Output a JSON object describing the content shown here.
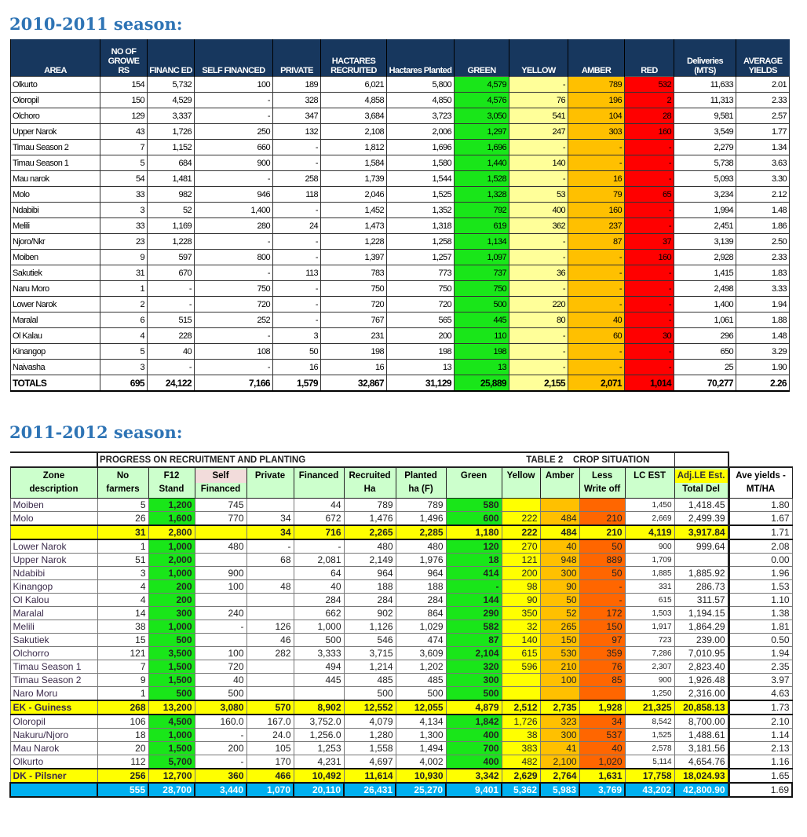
{
  "season1": {
    "title": "2010-2011 season:",
    "headers": [
      "AREA",
      "NO OF GROWE RS",
      "FINANC ED",
      "SELF FINANCED",
      "PRIVATE",
      "HACTARES RECRUITED",
      "Hactares Planted",
      "GREEN",
      "YELLOW",
      "AMBER",
      "RED",
      "Deliveries (MTS)",
      "AVERAGE YIELDS"
    ],
    "rows": [
      [
        "Olkurto",
        "154",
        "5,732",
        "100",
        "189",
        "6,021",
        "5,800",
        "4,579",
        "-",
        "789",
        "532",
        "11,633",
        "2.01"
      ],
      [
        "Oloropil",
        "150",
        "4,529",
        "-",
        "328",
        "4,858",
        "4,850",
        "4,576",
        "76",
        "196",
        "2",
        "11,313",
        "2.33"
      ],
      [
        "Olchoro",
        "129",
        "3,337",
        "-",
        "347",
        "3,684",
        "3,723",
        "3,050",
        "541",
        "104",
        "28",
        "9,581",
        "2.57"
      ],
      [
        "Upper Narok",
        "43",
        "1,726",
        "250",
        "132",
        "2,108",
        "2,006",
        "1,297",
        "247",
        "303",
        "160",
        "3,549",
        "1.77"
      ],
      [
        "Timau Season 2",
        "7",
        "1,152",
        "660",
        "-",
        "1,812",
        "1,696",
        "1,696",
        "-",
        "-",
        "-",
        "2,279",
        "1.34"
      ],
      [
        "Timau Season 1",
        "5",
        "684",
        "900",
        "-",
        "1,584",
        "1,580",
        "1,440",
        "140",
        "-",
        "-",
        "5,738",
        "3.63"
      ],
      [
        "Mau narok",
        "54",
        "1,481",
        "-",
        "258",
        "1,739",
        "1,544",
        "1,528",
        "-",
        "16",
        "-",
        "5,093",
        "3.30"
      ],
      [
        "Molo",
        "33",
        "982",
        "946",
        "118",
        "2,046",
        "1,525",
        "1,328",
        "53",
        "79",
        "65",
        "3,234",
        "2.12"
      ],
      [
        "Ndabibi",
        "3",
        "52",
        "1,400",
        "-",
        "1,452",
        "1,352",
        "792",
        "400",
        "160",
        "-",
        "1,994",
        "1.48"
      ],
      [
        "Melili",
        "33",
        "1,169",
        "280",
        "24",
        "1,473",
        "1,318",
        "619",
        "362",
        "237",
        "-",
        "2,451",
        "1.86"
      ],
      [
        "Njoro/Nkr",
        "23",
        "1,228",
        "-",
        "-",
        "1,228",
        "1,258",
        "1,134",
        "-",
        "87",
        "37",
        "3,139",
        "2.50"
      ],
      [
        "Moiben",
        "9",
        "597",
        "800",
        "-",
        "1,397",
        "1,257",
        "1,097",
        "-",
        "-",
        "160",
        "2,928",
        "2.33"
      ],
      [
        "Sakutiek",
        "31",
        "670",
        "-",
        "113",
        "783",
        "773",
        "737",
        "36",
        "-",
        "-",
        "1,415",
        "1.83"
      ],
      [
        "Naru Moro",
        "1",
        "-",
        "750",
        "-",
        "750",
        "750",
        "750",
        "-",
        "-",
        "-",
        "2,498",
        "3.33"
      ],
      [
        "Lower Narok",
        "2",
        "-",
        "720",
        "-",
        "720",
        "720",
        "500",
        "220",
        "-",
        "-",
        "1,400",
        "1.94"
      ],
      [
        "Maralal",
        "6",
        "515",
        "252",
        "-",
        "767",
        "565",
        "445",
        "80",
        "40",
        "-",
        "1,061",
        "1.88"
      ],
      [
        "Ol Kalau",
        "4",
        "228",
        "-",
        "3",
        "231",
        "200",
        "110",
        "-",
        "60",
        "30",
        "296",
        "1.48"
      ],
      [
        "Kinangop",
        "5",
        "40",
        "108",
        "50",
        "198",
        "198",
        "198",
        "-",
        "-",
        "-",
        "650",
        "3.29"
      ],
      [
        "Naivasha",
        "3",
        "-",
        "-",
        "16",
        "16",
        "13",
        "13",
        "-",
        "-",
        "-",
        "25",
        "1.90"
      ]
    ],
    "totals": [
      "TOTALS",
      "695",
      "24,122",
      "7,166",
      "1,579",
      "32,867",
      "31,129",
      "25,889",
      "2,155",
      "2,071",
      "1,014",
      "70,277",
      "2.26"
    ]
  },
  "season2": {
    "title": "2011-2012 season:",
    "group_progress": "PROGRESS ON RECRUITMENT AND PLANTING",
    "group_crop": "TABLE 2    CROP SITUATION",
    "headers": [
      {
        "l1": "Zone",
        "l2": "description"
      },
      {
        "l1": "No",
        "l2": "farmers"
      },
      {
        "l1": "F12",
        "l2": "Stand"
      },
      {
        "l1": "Self",
        "l2": "Financed"
      },
      {
        "l1": "Private",
        "l2": ""
      },
      {
        "l1": "Financed",
        "l2": ""
      },
      {
        "l1": "Recruited",
        "l2": "Ha"
      },
      {
        "l1": "Planted",
        "l2": "ha (F)"
      },
      {
        "l1": "Green",
        "l2": ""
      },
      {
        "l1": "Yellow",
        "l2": ""
      },
      {
        "l1": "Amber",
        "l2": ""
      },
      {
        "l1": "Less",
        "l2": "Write off"
      },
      {
        "l1": "LC EST",
        "l2": ""
      },
      {
        "l1": "Adj.LE Est.",
        "l2": "Total Del"
      },
      {
        "l1": "Ave yields -",
        "l2": "MT/HA"
      }
    ],
    "rows": [
      {
        "type": "normal",
        "cells": [
          "Moiben",
          "5",
          "1,200",
          "745",
          "",
          "44",
          "789",
          "789",
          "580",
          "",
          "",
          "",
          "1,450",
          "1,418.45",
          "1.80"
        ]
      },
      {
        "type": "normal",
        "cells": [
          "Molo",
          "26",
          "1,600",
          "770",
          "34",
          "672",
          "1,476",
          "1,496",
          "600",
          "222",
          "484",
          "210",
          "2,669",
          "2,499.39",
          "1.67"
        ]
      },
      {
        "type": "sub",
        "cells": [
          "",
          "31",
          "2,800",
          "",
          "34",
          "716",
          "2,265",
          "2,285",
          "1,180",
          "222",
          "484",
          "210",
          "4,119",
          "3,917.84",
          "1.71"
        ]
      },
      {
        "type": "normal",
        "cells": [
          "Lower Narok",
          "1",
          "1,000",
          "480",
          "-",
          "-",
          "480",
          "480",
          "120",
          "270",
          "40",
          "50",
          "900",
          "999.64",
          "2.08"
        ]
      },
      {
        "type": "normal",
        "cells": [
          "Upper Narok",
          "51",
          "2,000",
          "",
          "68",
          "2,081",
          "2,149",
          "1,976",
          "18",
          "121",
          "948",
          "889",
          "1,709",
          "",
          "0.00"
        ]
      },
      {
        "type": "normal",
        "cells": [
          "Ndabibi",
          "3",
          "1,000",
          "900",
          "",
          "64",
          "964",
          "964",
          "414",
          "200",
          "300",
          "50",
          "1,885",
          "1,885.92",
          "1.96"
        ]
      },
      {
        "type": "normal",
        "cells": [
          "Kinangop",
          "4",
          "200",
          "100",
          "48",
          "40",
          "188",
          "188",
          "-",
          "98",
          "90",
          "-",
          "331",
          "286.73",
          "1.53"
        ]
      },
      {
        "type": "normal",
        "cells": [
          "Ol Kalou",
          "4",
          "200",
          "",
          "",
          "284",
          "284",
          "284",
          "144",
          "90",
          "50",
          "-",
          "615",
          "311.57",
          "1.10"
        ]
      },
      {
        "type": "normal",
        "cells": [
          "Maralal",
          "14",
          "300",
          "240",
          "",
          "662",
          "902",
          "864",
          "290",
          "350",
          "52",
          "172",
          "1,503",
          "1,194.15",
          "1.38"
        ]
      },
      {
        "type": "normal",
        "cells": [
          "Melili",
          "38",
          "1,000",
          "-",
          "126",
          "1,000",
          "1,126",
          "1,029",
          "582",
          "32",
          "265",
          "150",
          "1,917",
          "1,864.29",
          "1.81"
        ]
      },
      {
        "type": "normal",
        "cells": [
          "Sakutiek",
          "15",
          "500",
          "",
          "46",
          "500",
          "546",
          "474",
          "87",
          "140",
          "150",
          "97",
          "723",
          "239.00",
          "0.50"
        ]
      },
      {
        "type": "normal",
        "cells": [
          "Olchorro",
          "121",
          "3,500",
          "100",
          "282",
          "3,333",
          "3,715",
          "3,609",
          "2,104",
          "615",
          "530",
          "359",
          "7,286",
          "7,010.95",
          "1.94"
        ]
      },
      {
        "type": "normal",
        "cells": [
          "Timau Season 1",
          "7",
          "1,500",
          "720",
          "",
          "494",
          "1,214",
          "1,202",
          "320",
          "596",
          "210",
          "76",
          "2,307",
          "2,823.40",
          "2.35"
        ]
      },
      {
        "type": "normal",
        "cells": [
          "Timau Season 2",
          "9",
          "1,500",
          "40",
          "",
          "445",
          "485",
          "485",
          "300",
          "",
          "100",
          "85",
          "900",
          "1,926.48",
          "3.97"
        ]
      },
      {
        "type": "normal",
        "cells": [
          "Naro Moru",
          "1",
          "500",
          "500",
          "",
          "",
          "500",
          "500",
          "500",
          "",
          "",
          "",
          "1,250",
          "2,316.00",
          "4.63"
        ]
      },
      {
        "type": "sub",
        "cells": [
          "EK - Guiness",
          "268",
          "13,200",
          "3,080",
          "570",
          "8,902",
          "12,552",
          "12,055",
          "4,879",
          "2,512",
          "2,735",
          "1,928",
          "21,325",
          "20,858.13",
          "1.73"
        ]
      },
      {
        "type": "normal",
        "cells": [
          "Oloropil",
          "106",
          "4,500",
          "160.0",
          "167.0",
          "3,752.0",
          "4,079",
          "4,134",
          "1,842",
          "1,726",
          "323",
          "34",
          "8,542",
          "8,700.00",
          "2.10"
        ]
      },
      {
        "type": "normal",
        "cells": [
          "Nakuru/Njoro",
          "18",
          "1,000",
          "-",
          "24.0",
          "1,256.0",
          "1,280",
          "1,300",
          "400",
          "38",
          "300",
          "537",
          "1,525",
          "1,488.61",
          "1.14"
        ]
      },
      {
        "type": "normal",
        "cells": [
          "Mau Narok",
          "20",
          "1,500",
          "200",
          "105",
          "1,253",
          "1,558",
          "1,494",
          "700",
          "383",
          "41",
          "40",
          "2,578",
          "3,181.56",
          "2.13"
        ]
      },
      {
        "type": "normal",
        "cells": [
          "Olkurto",
          "112",
          "5,700",
          "-",
          "170",
          "4,231",
          "4,697",
          "4,002",
          "400",
          "482",
          "2,100",
          "1,020",
          "5,114",
          "4,654.76",
          "1.16"
        ]
      },
      {
        "type": "sub",
        "cells": [
          "DK - Pilsner",
          "256",
          "12,700",
          "360",
          "466",
          "10,492",
          "11,614",
          "10,930",
          "3,342",
          "2,629",
          "2,764",
          "1,631",
          "17,758",
          "18,024.93",
          "1.65"
        ]
      },
      {
        "type": "grand",
        "cells": [
          "",
          "555",
          "28,700",
          "3,440",
          "1,070",
          "20,110",
          "26,431",
          "25,270",
          "9,401",
          "5,362",
          "5,983",
          "3,769",
          "43,202",
          "42,800.90",
          "1.69"
        ]
      }
    ]
  }
}
